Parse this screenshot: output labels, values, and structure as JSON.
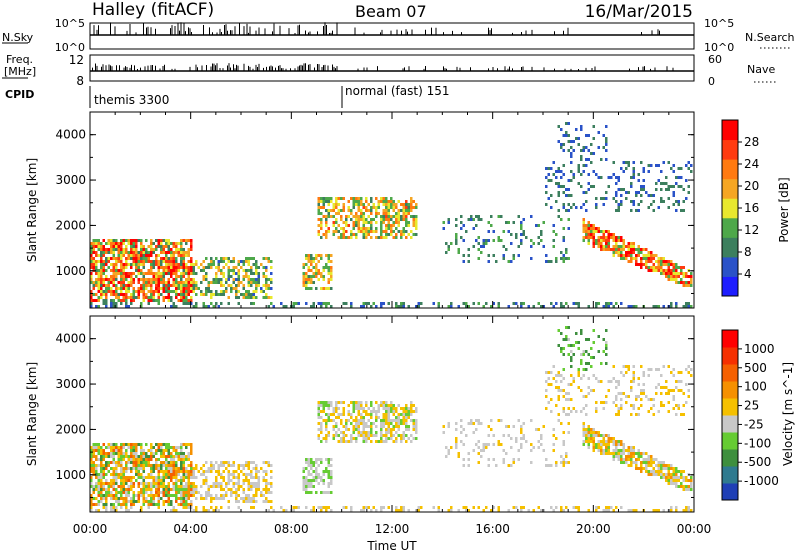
{
  "header": {
    "station": "Halley (fitACF)",
    "beam": "Beam 07",
    "date": "16/Mar/2015"
  },
  "panels": {
    "nsky": {
      "left_label": "N.Sky",
      "left_ticks": [
        "10^5",
        "10^0"
      ],
      "right_label": "N.Search",
      "right_ticks": [
        "10^5",
        "10^0"
      ],
      "right_line": "dotted"
    },
    "freq": {
      "left_label_top": "Freq.",
      "left_label_bottom": "[MHz]",
      "left_ticks": [
        "12",
        "8"
      ],
      "right_label": "Nave",
      "right_ticks": [
        "60",
        "0"
      ],
      "right_line": "dotted"
    },
    "cpid": {
      "label": "CPID",
      "modes": [
        {
          "name": "themis 3300",
          "start_hour": 0
        },
        {
          "name": "normal (fast) 151",
          "start_hour": 10.0
        }
      ]
    }
  },
  "colorbars": {
    "power": {
      "label": "Power [dB]",
      "ticks": [
        "28",
        "24",
        "20",
        "16",
        "12",
        "8",
        "4"
      ],
      "colors": [
        "#1e1eff",
        "#2a52c8",
        "#3c7f5e",
        "#4ea84a",
        "#e8e82e",
        "#f5a623",
        "#ff7a10",
        "#ff3b10",
        "#ff0000"
      ]
    },
    "velocity": {
      "label": "Velocity [m s^-1]",
      "ticks": [
        "1000",
        "500",
        "100",
        "25",
        "-25",
        "-100",
        "-500",
        "-1000"
      ],
      "colors": [
        "#1f3fb5",
        "#2f7a8f",
        "#3e8f3e",
        "#66cc33",
        "#c8c8c8",
        "#f5c000",
        "#f59000",
        "#f56000",
        "#f53000",
        "#ff0000"
      ]
    }
  },
  "chart_data": [
    {
      "type": "heatmap",
      "panel": "power",
      "title": "Halley (fitACF) Beam 07 16/Mar/2015",
      "xlabel": "Time UT",
      "ylabel": "Slant Range [km]",
      "xlim": [
        0,
        24
      ],
      "ylim": [
        180,
        4500
      ],
      "x_ticks": [
        "00:00",
        "04:00",
        "08:00",
        "12:00",
        "16:00",
        "20:00",
        "00:00"
      ],
      "y_ticks": [
        1000,
        2000,
        3000,
        4000
      ],
      "value_label": "Power [dB]",
      "value_range": [
        0,
        30
      ],
      "regions": [
        {
          "name": "ground scatter band",
          "t0": 0.0,
          "t1": 24.0,
          "r0": 180,
          "r1": 330,
          "v0": 4,
          "v1": 12,
          "density": 0.35
        },
        {
          "name": "early morning strong echoes",
          "t0": 0.0,
          "t1": 4.0,
          "r0": 300,
          "r1": 1700,
          "v0": 8,
          "v1": 30,
          "density": 0.75
        },
        {
          "name": "morning echoes",
          "t0": 4.0,
          "t1": 7.2,
          "r0": 400,
          "r1": 1300,
          "v0": 6,
          "v1": 20,
          "density": 0.55
        },
        {
          "name": "pre-noon low band",
          "t0": 8.4,
          "t1": 9.6,
          "r0": 600,
          "r1": 1400,
          "v0": 8,
          "v1": 22,
          "density": 0.55
        },
        {
          "name": "pre-noon high band",
          "t0": 9.0,
          "t1": 13.0,
          "r0": 1700,
          "r1": 2600,
          "v0": 8,
          "v1": 24,
          "density": 0.6
        },
        {
          "name": "afternoon sparse",
          "t0": 14.0,
          "t1": 19.0,
          "r0": 1200,
          "r1": 2200,
          "v0": 4,
          "v1": 12,
          "density": 0.15
        },
        {
          "name": "evening high patch",
          "t0": 18.5,
          "t1": 20.5,
          "r0": 3300,
          "r1": 4300,
          "v0": 4,
          "v1": 10,
          "density": 0.2
        },
        {
          "name": "evening diagonal band",
          "t0": 19.5,
          "t1": 24.0,
          "r0": 600,
          "r1": 2300,
          "v0": 10,
          "v1": 30,
          "density": 0.8
        },
        {
          "name": "evening upper arc",
          "t0": 18.0,
          "t1": 24.0,
          "r0": 2300,
          "r1": 3400,
          "v0": 4,
          "v1": 10,
          "density": 0.2
        }
      ]
    },
    {
      "type": "heatmap",
      "panel": "velocity",
      "xlabel": "Time UT",
      "ylabel": "Slant Range [km]",
      "xlim": [
        0,
        24
      ],
      "ylim": [
        180,
        4500
      ],
      "x_ticks": [
        "00:00",
        "04:00",
        "08:00",
        "12:00",
        "16:00",
        "20:00",
        "00:00"
      ],
      "y_ticks": [
        1000,
        2000,
        3000,
        4000
      ],
      "value_label": "Velocity [m s^-1]",
      "value_range": [
        -1000,
        1000
      ],
      "regions": [
        {
          "name": "ground scatter band",
          "t0": 0.0,
          "t1": 24.0,
          "r0": 180,
          "r1": 330,
          "v0": -25,
          "v1": 25,
          "density": 0.35
        },
        {
          "name": "early morning echoes",
          "t0": 0.0,
          "t1": 4.0,
          "r0": 300,
          "r1": 1700,
          "v0": -500,
          "v1": 500,
          "density": 0.75
        },
        {
          "name": "morning echoes",
          "t0": 4.0,
          "t1": 7.2,
          "r0": 400,
          "r1": 1300,
          "v0": -200,
          "v1": 200,
          "density": 0.55
        },
        {
          "name": "pre-noon low band",
          "t0": 8.4,
          "t1": 9.6,
          "r0": 600,
          "r1": 1400,
          "v0": -300,
          "v1": -50,
          "density": 0.55
        },
        {
          "name": "pre-noon high band",
          "t0": 9.0,
          "t1": 13.0,
          "r0": 1700,
          "r1": 2600,
          "v0": -300,
          "v1": 200,
          "density": 0.6
        },
        {
          "name": "afternoon sparse",
          "t0": 14.0,
          "t1": 19.0,
          "r0": 1200,
          "r1": 2200,
          "v0": -100,
          "v1": 25,
          "density": 0.15
        },
        {
          "name": "evening high patch",
          "t0": 18.5,
          "t1": 20.5,
          "r0": 3300,
          "r1": 4300,
          "v0": -600,
          "v1": -100,
          "density": 0.2
        },
        {
          "name": "evening diagonal band",
          "t0": 19.5,
          "t1": 24.0,
          "r0": 600,
          "r1": 2300,
          "v0": -300,
          "v1": 300,
          "density": 0.8
        },
        {
          "name": "evening upper arc",
          "t0": 18.0,
          "t1": 24.0,
          "r0": 2300,
          "r1": 3400,
          "v0": -25,
          "v1": 25,
          "density": 0.2
        }
      ]
    }
  ]
}
